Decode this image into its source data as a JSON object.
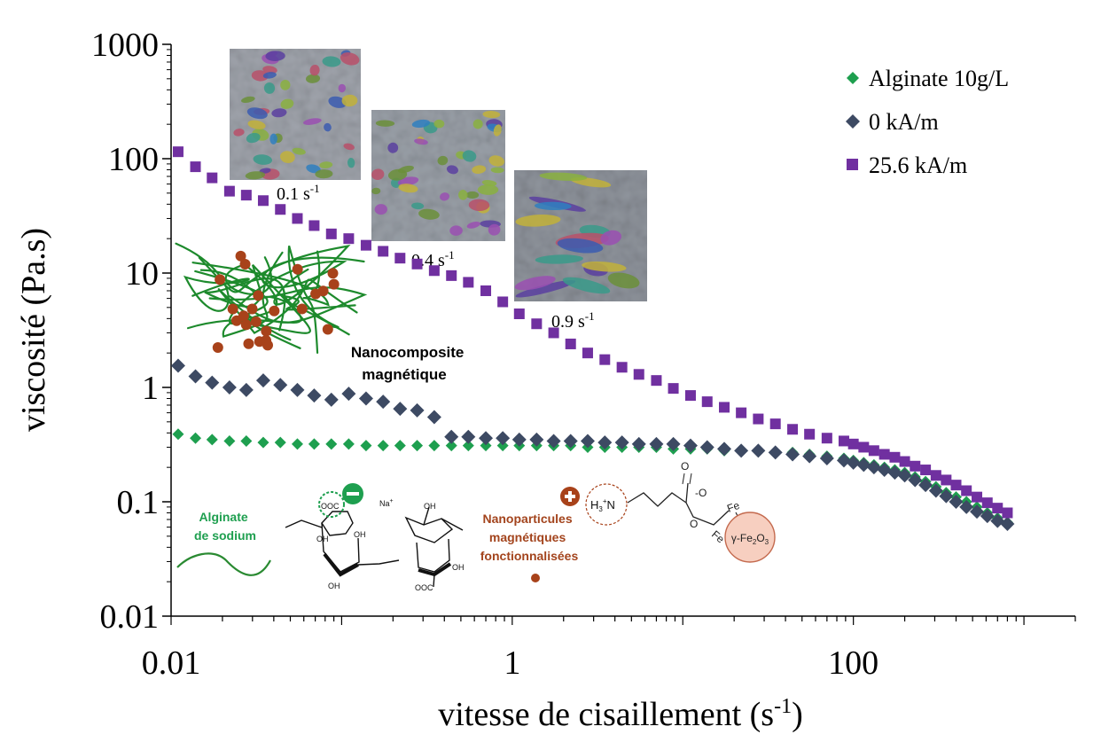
{
  "chart_data": {
    "type": "scatter",
    "xlabel": "vitesse de cisaillement (s",
    "xlabel_sup": "-1",
    "xlabel_close": ")",
    "ylabel": "viscosité (Pa.s)",
    "x_scale": "log",
    "y_scale": "log",
    "xlim": [
      0.01,
      2000
    ],
    "ylim": [
      0.01,
      1000
    ],
    "x_ticks": [
      {
        "value": 0.01,
        "label": "0.01"
      },
      {
        "value": 1,
        "label": "1"
      },
      {
        "value": 100,
        "label": "100"
      }
    ],
    "y_ticks": [
      {
        "value": 1000,
        "label": "1000"
      },
      {
        "value": 100,
        "label": "100"
      },
      {
        "value": 10,
        "label": "10"
      },
      {
        "value": 1,
        "label": "1"
      },
      {
        "value": 0.1,
        "label": "0.1"
      },
      {
        "value": 0.01,
        "label": "0.01"
      }
    ],
    "grid": false,
    "legend_position": "top-right",
    "series": [
      {
        "name": "Alginate 10g/L",
        "marker": "diamond",
        "color": "#1e9f4f",
        "points": [
          [
            0.011,
            0.39
          ],
          [
            0.0139,
            0.36
          ],
          [
            0.0174,
            0.35
          ],
          [
            0.022,
            0.34
          ],
          [
            0.0276,
            0.34
          ],
          [
            0.0347,
            0.33
          ],
          [
            0.0437,
            0.33
          ],
          [
            0.055,
            0.32
          ],
          [
            0.069,
            0.32
          ],
          [
            0.087,
            0.32
          ],
          [
            0.11,
            0.32
          ],
          [
            0.139,
            0.31
          ],
          [
            0.175,
            0.31
          ],
          [
            0.22,
            0.31
          ],
          [
            0.277,
            0.31
          ],
          [
            0.349,
            0.31
          ],
          [
            0.44,
            0.31
          ],
          [
            0.553,
            0.31
          ],
          [
            0.7,
            0.31
          ],
          [
            0.88,
            0.31
          ],
          [
            1.1,
            0.31
          ],
          [
            1.39,
            0.31
          ],
          [
            1.75,
            0.31
          ],
          [
            2.2,
            0.31
          ],
          [
            2.77,
            0.3
          ],
          [
            3.49,
            0.3
          ],
          [
            4.4,
            0.3
          ],
          [
            5.53,
            0.3
          ],
          [
            7.0,
            0.3
          ],
          [
            8.8,
            0.29
          ],
          [
            11.1,
            0.29
          ],
          [
            13.9,
            0.29
          ],
          [
            17.5,
            0.28
          ],
          [
            22.0,
            0.28
          ],
          [
            27.7,
            0.28
          ],
          [
            34.9,
            0.27
          ],
          [
            44.0,
            0.27
          ],
          [
            55.3,
            0.26
          ],
          [
            70.0,
            0.25
          ],
          [
            88.0,
            0.24
          ],
          [
            100,
            0.23
          ],
          [
            115,
            0.22
          ],
          [
            132,
            0.21
          ],
          [
            152,
            0.2
          ],
          [
            175,
            0.19
          ],
          [
            200,
            0.18
          ],
          [
            230,
            0.165
          ],
          [
            265,
            0.15
          ],
          [
            305,
            0.135
          ],
          [
            350,
            0.12
          ],
          [
            400,
            0.11
          ],
          [
            460,
            0.1
          ],
          [
            530,
            0.09
          ],
          [
            610,
            0.08
          ],
          [
            700,
            0.072
          ],
          [
            800,
            0.066
          ]
        ]
      },
      {
        "name": "0 kA/m",
        "marker": "diamond",
        "color": "#3d4a63",
        "points": [
          [
            0.011,
            1.55
          ],
          [
            0.0139,
            1.25
          ],
          [
            0.0174,
            1.1
          ],
          [
            0.022,
            1.0
          ],
          [
            0.0276,
            0.95
          ],
          [
            0.0347,
            1.15
          ],
          [
            0.0437,
            1.05
          ],
          [
            0.055,
            0.95
          ],
          [
            0.069,
            0.85
          ],
          [
            0.087,
            0.78
          ],
          [
            0.11,
            0.88
          ],
          [
            0.139,
            0.8
          ],
          [
            0.175,
            0.75
          ],
          [
            0.22,
            0.65
          ],
          [
            0.277,
            0.63
          ],
          [
            0.349,
            0.55
          ],
          [
            0.44,
            0.37
          ],
          [
            0.553,
            0.37
          ],
          [
            0.7,
            0.36
          ],
          [
            0.88,
            0.36
          ],
          [
            1.1,
            0.35
          ],
          [
            1.39,
            0.35
          ],
          [
            1.75,
            0.34
          ],
          [
            2.2,
            0.34
          ],
          [
            2.77,
            0.34
          ],
          [
            3.49,
            0.33
          ],
          [
            4.4,
            0.33
          ],
          [
            5.53,
            0.32
          ],
          [
            7.0,
            0.32
          ],
          [
            8.8,
            0.32
          ],
          [
            11.1,
            0.31
          ],
          [
            13.9,
            0.3
          ],
          [
            17.5,
            0.29
          ],
          [
            22.0,
            0.28
          ],
          [
            27.7,
            0.28
          ],
          [
            34.9,
            0.27
          ],
          [
            44.0,
            0.26
          ],
          [
            55.3,
            0.25
          ],
          [
            70.0,
            0.24
          ],
          [
            88.0,
            0.23
          ],
          [
            100,
            0.22
          ],
          [
            115,
            0.21
          ],
          [
            132,
            0.2
          ],
          [
            152,
            0.19
          ],
          [
            175,
            0.18
          ],
          [
            200,
            0.17
          ],
          [
            230,
            0.155
          ],
          [
            265,
            0.14
          ],
          [
            305,
            0.125
          ],
          [
            350,
            0.112
          ],
          [
            400,
            0.1
          ],
          [
            460,
            0.09
          ],
          [
            530,
            0.082
          ],
          [
            610,
            0.075
          ],
          [
            700,
            0.068
          ],
          [
            800,
            0.064
          ]
        ]
      },
      {
        "name": "25.6 kA/m",
        "marker": "square",
        "color": "#7030a0",
        "points": [
          [
            0.011,
            115
          ],
          [
            0.0139,
            85
          ],
          [
            0.0174,
            68
          ],
          [
            0.022,
            52
          ],
          [
            0.0276,
            48
          ],
          [
            0.0347,
            43
          ],
          [
            0.0437,
            36
          ],
          [
            0.055,
            30
          ],
          [
            0.069,
            26
          ],
          [
            0.087,
            22
          ],
          [
            0.11,
            20
          ],
          [
            0.139,
            17.5
          ],
          [
            0.175,
            15.5
          ],
          [
            0.22,
            13.5
          ],
          [
            0.277,
            12
          ],
          [
            0.349,
            10.5
          ],
          [
            0.44,
            9.5
          ],
          [
            0.553,
            8.3
          ],
          [
            0.7,
            7.0
          ],
          [
            0.88,
            5.6
          ],
          [
            1.1,
            4.4
          ],
          [
            1.39,
            3.6
          ],
          [
            1.75,
            3.0
          ],
          [
            2.2,
            2.4
          ],
          [
            2.77,
            2.0
          ],
          [
            3.49,
            1.75
          ],
          [
            4.4,
            1.5
          ],
          [
            5.53,
            1.3
          ],
          [
            7.0,
            1.15
          ],
          [
            8.8,
            0.98
          ],
          [
            11.1,
            0.85
          ],
          [
            13.9,
            0.75
          ],
          [
            17.5,
            0.67
          ],
          [
            22.0,
            0.6
          ],
          [
            27.7,
            0.53
          ],
          [
            34.9,
            0.48
          ],
          [
            44.0,
            0.43
          ],
          [
            55.3,
            0.39
          ],
          [
            70.0,
            0.36
          ],
          [
            88.0,
            0.34
          ],
          [
            100,
            0.32
          ],
          [
            115,
            0.3
          ],
          [
            132,
            0.28
          ],
          [
            152,
            0.26
          ],
          [
            175,
            0.245
          ],
          [
            200,
            0.225
          ],
          [
            230,
            0.205
          ],
          [
            265,
            0.19
          ],
          [
            305,
            0.17
          ],
          [
            350,
            0.155
          ],
          [
            400,
            0.14
          ],
          [
            460,
            0.125
          ],
          [
            530,
            0.11
          ],
          [
            610,
            0.098
          ],
          [
            700,
            0.088
          ],
          [
            800,
            0.08
          ]
        ]
      }
    ],
    "insets": [
      {
        "label": "0.1 s",
        "sup": "-1"
      },
      {
        "label": "0.4 s",
        "sup": "-1"
      },
      {
        "label": "0.9 s",
        "sup": "-1"
      }
    ],
    "annotations": {
      "nanocomposite_line1": "Nanocomposite",
      "nanocomposite_line2": "magnétique",
      "alginate_line1": "Alginate",
      "alginate_line2": "de sodium",
      "sodium": "Na",
      "sodium_sup": "+",
      "nanoparticles_line1": "Nanoparticules",
      "nanoparticles_line2": "magnétiques",
      "nanoparticles_line3": "fonctionnalisées",
      "amine": "H",
      "amine_sub": "3",
      "amine_sup": "+",
      "amine_n": "N",
      "carboxylate": "OOC",
      "oh": "OH",
      "fe": "Fe",
      "fe2o3": "γ-Fe",
      "fe2o3_sub1": "2",
      "fe2o3_o": "O",
      "fe2o3_sub2": "3",
      "o_minus": "-O",
      "o": "O",
      "minus_sign": "−",
      "plus_sign": "+"
    }
  }
}
